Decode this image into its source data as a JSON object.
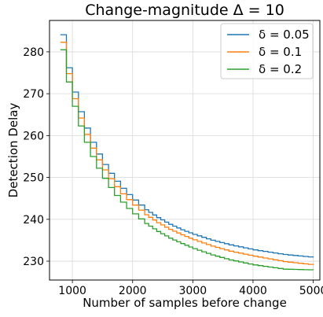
{
  "chart_data": {
    "type": "line",
    "title": "Change-magnitude Δ = 10",
    "xlabel": "Number of samples before change",
    "ylabel": "Detection Delay",
    "xlim": [
      620,
      5110
    ],
    "ylim": [
      225.5,
      287.5
    ],
    "x_ticks": [
      1000,
      2000,
      3000,
      4000,
      5000
    ],
    "x_tick_labels": [
      "1000",
      "2000",
      "3000",
      "4000",
      "5000"
    ],
    "y_ticks": [
      230,
      240,
      250,
      260,
      270,
      280
    ],
    "y_tick_labels": [
      "230",
      "240",
      "250",
      "260",
      "270",
      "280"
    ],
    "grid": true,
    "legend_position": "top-right",
    "series": [
      {
        "name": "δ = 0.05",
        "color": "#1f77b4",
        "x": [
          800,
          900,
          1000,
          1100,
          1200,
          1300,
          1400,
          1500,
          1600,
          1700,
          1800,
          1900,
          2000,
          2100,
          2200,
          2400,
          2600,
          2800,
          3000,
          3300,
          3600,
          4000,
          4500,
          5000
        ],
        "y": [
          284.1,
          276.2,
          270.4,
          265.7,
          261.8,
          258.4,
          255.6,
          253.1,
          251.0,
          249.1,
          247.4,
          245.9,
          244.6,
          243.4,
          242.3,
          240.4,
          238.8,
          237.5,
          236.4,
          235.0,
          233.9,
          232.7,
          231.6,
          230.9
        ]
      },
      {
        "name": "δ = 0.1",
        "color": "#ff7f0e",
        "x": [
          800,
          900,
          1000,
          1100,
          1200,
          1300,
          1400,
          1500,
          1600,
          1700,
          1800,
          1900,
          2000,
          2100,
          2200,
          2400,
          2600,
          2800,
          3000,
          3300,
          3600,
          4000,
          4500,
          5000
        ],
        "y": [
          282.3,
          274.8,
          268.8,
          264.2,
          260.3,
          257.0,
          254.2,
          251.8,
          249.7,
          247.8,
          246.1,
          244.7,
          243.4,
          242.2,
          241.1,
          239.2,
          237.6,
          236.3,
          235.1,
          233.6,
          232.4,
          231.2,
          229.9,
          229.1
        ]
      },
      {
        "name": "δ = 0.2",
        "color": "#2ca02c",
        "x": [
          800,
          900,
          1000,
          1100,
          1200,
          1300,
          1400,
          1500,
          1600,
          1700,
          1800,
          1900,
          2000,
          2100,
          2200,
          2400,
          2600,
          2800,
          3000,
          3300,
          3600,
          4000,
          4500,
          5000
        ],
        "y": [
          280.5,
          272.8,
          267.0,
          262.3,
          258.4,
          255.0,
          252.2,
          249.8,
          247.6,
          245.7,
          244.1,
          242.6,
          241.3,
          240.1,
          239.0,
          237.1,
          235.5,
          234.2,
          233.0,
          231.5,
          230.3,
          229.1,
          228.1,
          227.9
        ]
      }
    ]
  }
}
